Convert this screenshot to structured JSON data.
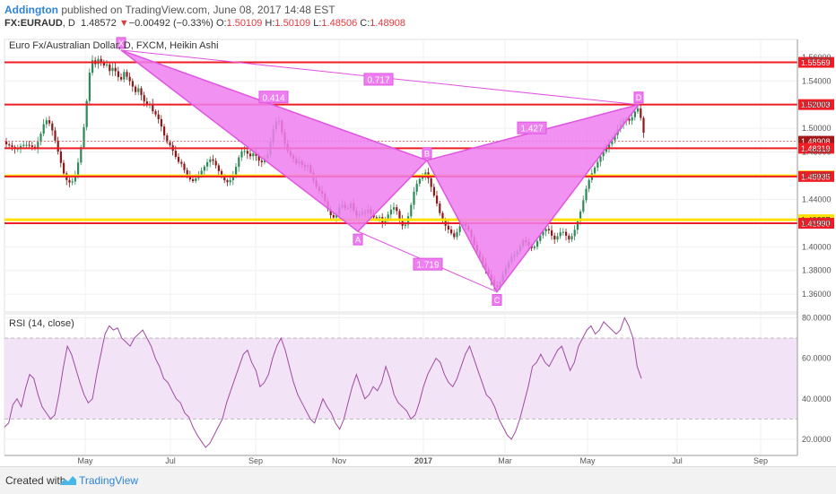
{
  "header": {
    "author": "Addington",
    "published": " published on TradingView.com, June 08, 2017 14:48 EST",
    "symbol": "FX:EURAUD",
    "interval": "D",
    "last": "1.48572",
    "arrow": "▼",
    "change": "−0.00492 (−0.33%)",
    "o_label": "O:",
    "o_value": "1.50109",
    "h_label": "H:",
    "h_value": "1.50109",
    "l_label": "L:",
    "l_value": "1.48506",
    "c_label": "C:",
    "c_value": "1.48908"
  },
  "footer": {
    "created": "Created with",
    "brand": "TradingView"
  },
  "colors": {
    "up": "#2e8b57",
    "down": "#8b1a1a",
    "pattern_fill": "#ee7ff0",
    "pattern_line": "#e055e0",
    "red_level": "#ee1c25",
    "yellow_level": "#ffe000",
    "rsi_line": "#a04aa0",
    "rsi_band": "#f3e3f7"
  },
  "chart_data": [
    {
      "type": "candlestick",
      "title": "Euro Fx/Australian Dollar, D, FXCM, Heikin Ashi",
      "ylim": [
        1.345,
        1.575
      ],
      "yticks": [
        "1.56000",
        "1.54000",
        "1.52000",
        "1.50000",
        "1.48000",
        "1.46000",
        "1.44000",
        "1.42000",
        "1.40000",
        "1.38000",
        "1.36000"
      ],
      "xticks": [
        "May",
        "Jul",
        "Sep",
        "Nov",
        "2017",
        "Mar",
        "May",
        "Jul",
        "Sep"
      ],
      "price_path": [
        {
          "x": 0,
          "y": 1.487
        },
        {
          "x": 5,
          "y": 1.486
        },
        {
          "x": 14,
          "y": 1.482
        },
        {
          "x": 20,
          "y": 1.486
        },
        {
          "x": 27,
          "y": 1.486
        },
        {
          "x": 35,
          "y": 1.483
        },
        {
          "x": 40,
          "y": 1.493
        },
        {
          "x": 46,
          "y": 1.508
        },
        {
          "x": 52,
          "y": 1.503
        },
        {
          "x": 58,
          "y": 1.487
        },
        {
          "x": 62,
          "y": 1.475
        },
        {
          "x": 66,
          "y": 1.463
        },
        {
          "x": 70,
          "y": 1.456
        },
        {
          "x": 75,
          "y": 1.453
        },
        {
          "x": 80,
          "y": 1.462
        },
        {
          "x": 84,
          "y": 1.476
        },
        {
          "x": 88,
          "y": 1.494
        },
        {
          "x": 91,
          "y": 1.515
        },
        {
          "x": 94,
          "y": 1.535
        },
        {
          "x": 96,
          "y": 1.552
        },
        {
          "x": 98,
          "y": 1.558
        },
        {
          "x": 102,
          "y": 1.554
        },
        {
          "x": 106,
          "y": 1.56
        },
        {
          "x": 110,
          "y": 1.552
        },
        {
          "x": 114,
          "y": 1.555
        },
        {
          "x": 118,
          "y": 1.548
        },
        {
          "x": 122,
          "y": 1.552
        },
        {
          "x": 126,
          "y": 1.545
        },
        {
          "x": 130,
          "y": 1.54
        },
        {
          "x": 134,
          "y": 1.548
        },
        {
          "x": 138,
          "y": 1.542
        },
        {
          "x": 142,
          "y": 1.538
        },
        {
          "x": 146,
          "y": 1.53
        },
        {
          "x": 150,
          "y": 1.534
        },
        {
          "x": 154,
          "y": 1.526
        },
        {
          "x": 158,
          "y": 1.52
        },
        {
          "x": 162,
          "y": 1.522
        },
        {
          "x": 166,
          "y": 1.514
        },
        {
          "x": 170,
          "y": 1.511
        },
        {
          "x": 174,
          "y": 1.505
        },
        {
          "x": 178,
          "y": 1.495
        },
        {
          "x": 182,
          "y": 1.488
        },
        {
          "x": 186,
          "y": 1.485
        },
        {
          "x": 190,
          "y": 1.478
        },
        {
          "x": 194,
          "y": 1.472
        },
        {
          "x": 198,
          "y": 1.47
        },
        {
          "x": 202,
          "y": 1.463
        },
        {
          "x": 206,
          "y": 1.458
        },
        {
          "x": 210,
          "y": 1.455
        },
        {
          "x": 214,
          "y": 1.458
        },
        {
          "x": 218,
          "y": 1.462
        },
        {
          "x": 222,
          "y": 1.466
        },
        {
          "x": 226,
          "y": 1.471
        },
        {
          "x": 230,
          "y": 1.474
        },
        {
          "x": 234,
          "y": 1.472
        },
        {
          "x": 238,
          "y": 1.466
        },
        {
          "x": 242,
          "y": 1.46
        },
        {
          "x": 246,
          "y": 1.456
        },
        {
          "x": 250,
          "y": 1.454
        },
        {
          "x": 254,
          "y": 1.458
        },
        {
          "x": 258,
          "y": 1.466
        },
        {
          "x": 262,
          "y": 1.476
        },
        {
          "x": 266,
          "y": 1.482
        },
        {
          "x": 270,
          "y": 1.48
        },
        {
          "x": 274,
          "y": 1.476
        },
        {
          "x": 278,
          "y": 1.479
        },
        {
          "x": 282,
          "y": 1.476
        },
        {
          "x": 286,
          "y": 1.47
        },
        {
          "x": 290,
          "y": 1.474
        },
        {
          "x": 294,
          "y": 1.478
        },
        {
          "x": 298,
          "y": 1.492
        },
        {
          "x": 302,
          "y": 1.505
        },
        {
          "x": 306,
          "y": 1.508
        },
        {
          "x": 310,
          "y": 1.496
        },
        {
          "x": 314,
          "y": 1.484
        },
        {
          "x": 318,
          "y": 1.478
        },
        {
          "x": 322,
          "y": 1.475
        },
        {
          "x": 326,
          "y": 1.47
        },
        {
          "x": 330,
          "y": 1.473
        },
        {
          "x": 334,
          "y": 1.466
        },
        {
          "x": 338,
          "y": 1.47
        },
        {
          "x": 342,
          "y": 1.462
        },
        {
          "x": 346,
          "y": 1.454
        },
        {
          "x": 350,
          "y": 1.448
        },
        {
          "x": 354,
          "y": 1.446
        },
        {
          "x": 358,
          "y": 1.438
        },
        {
          "x": 362,
          "y": 1.43
        },
        {
          "x": 366,
          "y": 1.424
        },
        {
          "x": 370,
          "y": 1.426
        },
        {
          "x": 374,
          "y": 1.434
        },
        {
          "x": 378,
          "y": 1.436
        },
        {
          "x": 382,
          "y": 1.43
        },
        {
          "x": 386,
          "y": 1.438
        },
        {
          "x": 390,
          "y": 1.43
        },
        {
          "x": 394,
          "y": 1.425
        },
        {
          "x": 398,
          "y": 1.43
        },
        {
          "x": 402,
          "y": 1.428
        },
        {
          "x": 406,
          "y": 1.432
        },
        {
          "x": 410,
          "y": 1.426
        },
        {
          "x": 414,
          "y": 1.424
        },
        {
          "x": 418,
          "y": 1.426
        },
        {
          "x": 422,
          "y": 1.42
        },
        {
          "x": 426,
          "y": 1.424
        },
        {
          "x": 430,
          "y": 1.43
        },
        {
          "x": 434,
          "y": 1.434
        },
        {
          "x": 438,
          "y": 1.43
        },
        {
          "x": 442,
          "y": 1.42
        },
        {
          "x": 446,
          "y": 1.416
        },
        {
          "x": 450,
          "y": 1.424
        },
        {
          "x": 454,
          "y": 1.436
        },
        {
          "x": 458,
          "y": 1.45
        },
        {
          "x": 462,
          "y": 1.456
        },
        {
          "x": 466,
          "y": 1.46
        },
        {
          "x": 470,
          "y": 1.463
        },
        {
          "x": 474,
          "y": 1.456
        },
        {
          "x": 478,
          "y": 1.446
        },
        {
          "x": 482,
          "y": 1.438
        },
        {
          "x": 486,
          "y": 1.428
        },
        {
          "x": 490,
          "y": 1.42
        },
        {
          "x": 494,
          "y": 1.416
        },
        {
          "x": 498,
          "y": 1.412
        },
        {
          "x": 502,
          "y": 1.408
        },
        {
          "x": 506,
          "y": 1.414
        },
        {
          "x": 510,
          "y": 1.42
        },
        {
          "x": 514,
          "y": 1.418
        },
        {
          "x": 518,
          "y": 1.414
        },
        {
          "x": 522,
          "y": 1.406
        },
        {
          "x": 526,
          "y": 1.398
        },
        {
          "x": 530,
          "y": 1.392
        },
        {
          "x": 534,
          "y": 1.386
        },
        {
          "x": 538,
          "y": 1.38
        },
        {
          "x": 542,
          "y": 1.374
        },
        {
          "x": 546,
          "y": 1.368
        },
        {
          "x": 550,
          "y": 1.366
        },
        {
          "x": 554,
          "y": 1.372
        },
        {
          "x": 558,
          "y": 1.38
        },
        {
          "x": 562,
          "y": 1.386
        },
        {
          "x": 566,
          "y": 1.392
        },
        {
          "x": 570,
          "y": 1.394
        },
        {
          "x": 574,
          "y": 1.398
        },
        {
          "x": 578,
          "y": 1.406
        },
        {
          "x": 582,
          "y": 1.404
        },
        {
          "x": 586,
          "y": 1.4
        },
        {
          "x": 590,
          "y": 1.398
        },
        {
          "x": 594,
          "y": 1.404
        },
        {
          "x": 598,
          "y": 1.41
        },
        {
          "x": 602,
          "y": 1.414
        },
        {
          "x": 606,
          "y": 1.416
        },
        {
          "x": 610,
          "y": 1.41
        },
        {
          "x": 614,
          "y": 1.406
        },
        {
          "x": 618,
          "y": 1.41
        },
        {
          "x": 622,
          "y": 1.414
        },
        {
          "x": 626,
          "y": 1.41
        },
        {
          "x": 630,
          "y": 1.406
        },
        {
          "x": 634,
          "y": 1.41
        },
        {
          "x": 638,
          "y": 1.418
        },
        {
          "x": 642,
          "y": 1.428
        },
        {
          "x": 646,
          "y": 1.44
        },
        {
          "x": 650,
          "y": 1.452
        },
        {
          "x": 654,
          "y": 1.46
        },
        {
          "x": 658,
          "y": 1.466
        },
        {
          "x": 662,
          "y": 1.472
        },
        {
          "x": 666,
          "y": 1.478
        },
        {
          "x": 670,
          "y": 1.482
        },
        {
          "x": 674,
          "y": 1.486
        },
        {
          "x": 678,
          "y": 1.49
        },
        {
          "x": 682,
          "y": 1.496
        },
        {
          "x": 686,
          "y": 1.502
        },
        {
          "x": 690,
          "y": 1.506
        },
        {
          "x": 694,
          "y": 1.508
        },
        {
          "x": 698,
          "y": 1.506
        },
        {
          "x": 702,
          "y": 1.512
        },
        {
          "x": 706,
          "y": 1.518
        },
        {
          "x": 709,
          "y": 1.512
        },
        {
          "x": 712,
          "y": 1.5
        },
        {
          "x": 715,
          "y": 1.489
        }
      ],
      "levels": [
        {
          "value": 1.55569,
          "label": "1.55569",
          "kind": "red"
        },
        {
          "value": 1.52003,
          "label": "1.52003",
          "kind": "red"
        },
        {
          "value": 1.48908,
          "label": "1.48908",
          "kind": "current"
        },
        {
          "value": 1.48319,
          "label": "1.48319",
          "kind": "red"
        },
        {
          "value": 1.45986,
          "label": "1.45986",
          "kind": "yellow"
        },
        {
          "value": 1.45935,
          "label": "1.45935",
          "kind": "red"
        },
        {
          "value": 1.42287,
          "label": "1.42287",
          "kind": "yellow"
        },
        {
          "value": 1.4199,
          "label": "1.41990",
          "kind": "red"
        }
      ],
      "pattern": {
        "points": [
          {
            "label": "X",
            "x": 130,
            "y": 1.566
          },
          {
            "label": "A",
            "x": 394,
            "y": 1.413
          },
          {
            "label": "B",
            "x": 471,
            "y": 1.473
          },
          {
            "label": "C",
            "x": 549,
            "y": 1.362
          },
          {
            "label": "D",
            "x": 707,
            "y": 1.52
          }
        ],
        "ratios": [
          {
            "label": "0.414",
            "x": 300,
            "y": 1.526
          },
          {
            "label": "0.717",
            "x": 417,
            "y": 1.541
          },
          {
            "label": "1.427",
            "x": 588,
            "y": 1.5
          },
          {
            "label": "1.719",
            "x": 472,
            "y": 1.385
          }
        ]
      }
    },
    {
      "type": "line",
      "title": "RSI (14, close)",
      "ylim": [
        12,
        82
      ],
      "yticks": [
        "80.0000",
        "60.0000",
        "40.0000",
        "20.0000"
      ],
      "bands": [
        30,
        70
      ],
      "values": [
        26,
        28,
        37,
        40,
        36,
        45,
        52,
        50,
        42,
        36,
        33,
        30,
        32,
        42,
        55,
        66,
        62,
        55,
        48,
        42,
        38,
        40,
        52,
        62,
        72,
        76,
        74,
        75,
        70,
        68,
        66,
        70,
        72,
        74,
        70,
        66,
        60,
        56,
        50,
        48,
        44,
        40,
        38,
        33,
        31,
        26,
        22,
        19,
        16,
        18,
        22,
        26,
        30,
        38,
        44,
        50,
        56,
        62,
        64,
        58,
        54,
        46,
        48,
        52,
        60,
        66,
        70,
        64,
        56,
        48,
        42,
        38,
        34,
        30,
        28,
        34,
        40,
        36,
        33,
        28,
        25,
        30,
        38,
        46,
        52,
        46,
        40,
        42,
        46,
        44,
        48,
        56,
        50,
        42,
        38,
        36,
        34,
        30,
        32,
        38,
        46,
        52,
        56,
        60,
        58,
        52,
        48,
        46,
        50,
        56,
        62,
        66,
        60,
        54,
        48,
        42,
        40,
        36,
        30,
        26,
        22,
        20,
        24,
        30,
        38,
        46,
        56,
        58,
        62,
        58,
        56,
        60,
        64,
        66,
        60,
        54,
        58,
        66,
        70,
        74,
        76,
        72,
        74,
        78,
        76,
        74,
        72,
        74,
        80,
        76,
        70,
        56,
        50
      ]
    }
  ]
}
